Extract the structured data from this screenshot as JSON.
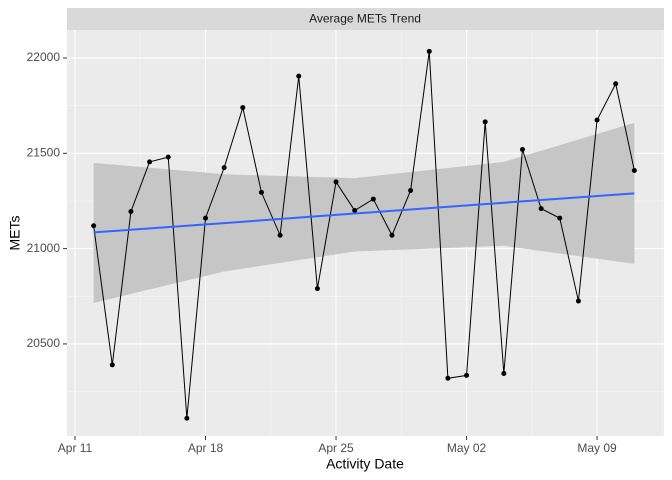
{
  "chart_data": {
    "type": "line",
    "title": "Average METs Trend",
    "xlabel": "Activity Date",
    "ylabel": "METs",
    "x": [
      "Apr 12",
      "Apr 13",
      "Apr 14",
      "Apr 15",
      "Apr 16",
      "Apr 17",
      "Apr 18",
      "Apr 19",
      "Apr 20",
      "Apr 21",
      "Apr 22",
      "Apr 23",
      "Apr 24",
      "Apr 25",
      "Apr 26",
      "Apr 27",
      "Apr 28",
      "Apr 29",
      "Apr 30",
      "May 01",
      "May 02",
      "May 03",
      "May 04",
      "May 05",
      "May 06",
      "May 07",
      "May 08",
      "May 09",
      "May 10",
      "May 11"
    ],
    "series": [
      {
        "color": "#000000",
        "values": [
          21120,
          20390,
          21195,
          21455,
          21480,
          20110,
          21160,
          21425,
          21740,
          21295,
          21070,
          21905,
          20790,
          21350,
          21200,
          21260,
          21070,
          21305,
          22035,
          20320,
          20335,
          21665,
          20345,
          21520,
          21210,
          21160,
          20725,
          21675,
          21865,
          21410
        ]
      }
    ],
    "trend": {
      "color": "#3366ff",
      "band_color": "#c6c6c6",
      "x": [
        "Apr 12",
        "Apr 19",
        "Apr 26",
        "May 04",
        "May 11"
      ],
      "fit": [
        21085,
        21134,
        21184,
        21241,
        21290
      ],
      "lower": [
        20715,
        20880,
        20985,
        21015,
        20920
      ],
      "upper": [
        21450,
        21390,
        21370,
        21455,
        21660
      ]
    },
    "xlim": [
      "Apr 11",
      "May 12"
    ],
    "xticks": [
      "Apr 11",
      "Apr 18",
      "Apr 25",
      "May 02",
      "May 09"
    ],
    "ylim": [
      20017,
      22147
    ],
    "yticks": [
      20500,
      21000,
      21500,
      22000
    ],
    "grid": true
  }
}
